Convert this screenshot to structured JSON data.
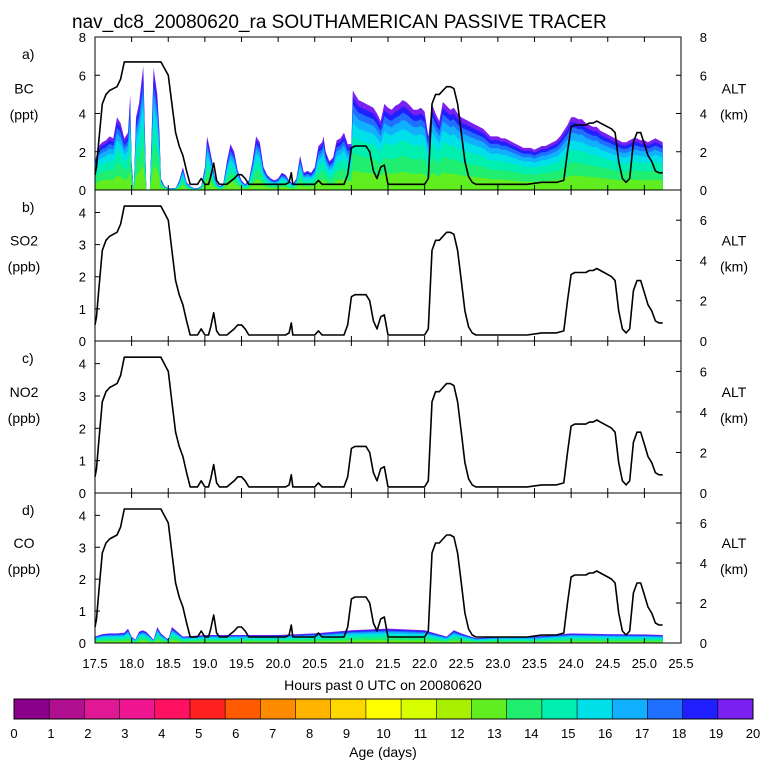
{
  "chart_data": {
    "type": "line",
    "title": "nav_dc8_20080620_ra SOUTHAMERICAN PASSIVE TRACER",
    "xlabel": "Hours past 0 UTC on 20080620",
    "xlim": [
      17.5,
      25.5
    ],
    "xticks": [
      "17.5",
      "18.0",
      "18.5",
      "19.0",
      "19.5",
      "20.0",
      "20.5",
      "21.0",
      "21.5",
      "22.0",
      "22.5",
      "23.0",
      "23.5",
      "24.0",
      "24.5",
      "25.0",
      "25.5"
    ],
    "altitude_km": {
      "x": [
        17.5,
        17.52,
        17.55,
        17.6,
        17.65,
        17.7,
        17.75,
        17.8,
        17.85,
        17.9,
        18.0,
        18.1,
        18.2,
        18.3,
        18.4,
        18.5,
        18.55,
        18.6,
        18.65,
        18.7,
        18.75,
        18.8,
        18.85,
        18.9,
        18.95,
        19.0,
        19.05,
        19.08,
        19.12,
        19.16,
        19.2,
        19.25,
        19.3,
        19.4,
        19.45,
        19.5,
        19.55,
        19.6,
        19.7,
        19.8,
        19.9,
        20.0,
        20.1,
        20.15,
        20.18,
        20.2,
        20.22,
        20.25,
        20.3,
        20.4,
        20.45,
        20.5,
        20.55,
        20.6,
        20.7,
        20.8,
        20.9,
        20.95,
        21.0,
        21.05,
        21.1,
        21.2,
        21.25,
        21.3,
        21.35,
        21.4,
        21.45,
        21.5,
        21.55,
        21.6,
        21.7,
        21.8,
        21.9,
        22.0,
        22.05,
        22.1,
        22.15,
        22.2,
        22.25,
        22.3,
        22.35,
        22.4,
        22.45,
        22.5,
        22.55,
        22.6,
        22.65,
        22.7,
        22.8,
        22.9,
        23.0,
        23.2,
        23.4,
        23.6,
        23.8,
        23.9,
        23.95,
        24.0,
        24.05,
        24.1,
        24.2,
        24.25,
        24.3,
        24.35,
        24.4,
        24.45,
        24.5,
        24.55,
        24.6,
        24.65,
        24.7,
        24.75,
        24.8,
        24.85,
        24.9,
        24.95,
        25.0,
        25.05,
        25.1,
        25.15,
        25.2,
        25.25
      ],
      "y": [
        0.8,
        1.2,
        2.5,
        4.5,
        5.0,
        5.2,
        5.3,
        5.4,
        5.8,
        6.7,
        6.7,
        6.7,
        6.7,
        6.7,
        6.7,
        6.0,
        4.5,
        3.0,
        2.3,
        1.8,
        1.0,
        0.3,
        0.3,
        0.3,
        0.6,
        0.3,
        0.3,
        0.7,
        1.4,
        0.5,
        0.3,
        0.3,
        0.3,
        0.6,
        0.8,
        0.8,
        0.6,
        0.3,
        0.3,
        0.3,
        0.3,
        0.3,
        0.3,
        0.4,
        0.9,
        0.3,
        0.3,
        0.3,
        0.3,
        0.3,
        0.3,
        0.3,
        0.5,
        0.3,
        0.3,
        0.3,
        0.3,
        0.8,
        2.2,
        2.3,
        2.3,
        2.3,
        2.0,
        1.0,
        0.6,
        1.2,
        1.3,
        0.3,
        0.3,
        0.3,
        0.3,
        0.3,
        0.3,
        0.3,
        0.6,
        4.5,
        5.0,
        5.0,
        5.2,
        5.4,
        5.4,
        5.3,
        4.5,
        3.0,
        1.5,
        0.7,
        0.4,
        0.3,
        0.3,
        0.3,
        0.3,
        0.3,
        0.3,
        0.4,
        0.4,
        0.5,
        2.0,
        3.3,
        3.4,
        3.4,
        3.4,
        3.5,
        3.5,
        3.6,
        3.5,
        3.4,
        3.3,
        3.2,
        3.0,
        1.5,
        0.6,
        0.4,
        0.6,
        2.5,
        3.0,
        3.0,
        2.4,
        1.8,
        1.5,
        1.0,
        0.9,
        0.9
      ]
    },
    "age_colorbar": {
      "label": "Age (days)",
      "ticks": [
        "0",
        "1",
        "2",
        "3",
        "4",
        "5",
        "6",
        "7",
        "8",
        "9",
        "10",
        "11",
        "12",
        "13",
        "14",
        "15",
        "16",
        "17",
        "18",
        "19",
        "20"
      ],
      "colors": [
        "#8b008b",
        "#b0108f",
        "#e01894",
        "#f01590",
        "#ff1060",
        "#ff2020",
        "#ff5a00",
        "#ff8c00",
        "#ffb400",
        "#ffd700",
        "#ffff00",
        "#d8ff00",
        "#a8f000",
        "#60ee20",
        "#20ee70",
        "#00eeb0",
        "#00e0e8",
        "#10b0ff",
        "#2070ff",
        "#2020ff",
        "#7a20f0"
      ]
    },
    "panels": [
      {
        "letter": "a)",
        "ylabel": "BC",
        "yunit": "(ppt)",
        "ylim": [
          0,
          8
        ],
        "yticks": [
          "0",
          "2",
          "4",
          "6",
          "8"
        ],
        "right_label": "ALT",
        "right_unit": "(km)",
        "right_ylim": [
          0,
          8
        ],
        "right_yticks": [
          "0",
          "2",
          "4",
          "6",
          "8"
        ],
        "tracer_total": {
          "x": [
            17.5,
            17.55,
            17.6,
            17.65,
            17.7,
            17.75,
            17.8,
            17.85,
            17.9,
            17.95,
            17.98,
            18.0,
            18.03,
            18.06,
            18.1,
            18.13,
            18.16,
            18.2,
            18.25,
            18.3,
            18.35,
            18.38,
            18.4,
            18.45,
            18.5,
            18.55,
            18.6,
            18.65,
            18.7,
            18.75,
            18.8,
            18.85,
            18.9,
            18.95,
            19.0,
            19.03,
            19.06,
            19.1,
            19.13,
            19.16,
            19.2,
            19.25,
            19.3,
            19.35,
            19.4,
            19.45,
            19.5,
            19.55,
            19.6,
            19.65,
            19.7,
            19.75,
            19.8,
            19.85,
            19.9,
            19.95,
            20.0,
            20.05,
            20.1,
            20.15,
            20.2,
            20.25,
            20.3,
            20.35,
            20.4,
            20.45,
            20.5,
            20.55,
            20.6,
            20.62,
            20.65,
            20.7,
            20.75,
            20.8,
            20.85,
            20.9,
            20.95,
            21.0,
            21.02,
            21.05,
            21.1,
            21.15,
            21.2,
            21.25,
            21.3,
            21.35,
            21.4,
            21.45,
            21.5,
            21.55,
            21.6,
            21.65,
            21.7,
            21.75,
            21.8,
            21.85,
            21.9,
            21.95,
            22.0,
            22.05,
            22.1,
            22.15,
            22.2,
            22.25,
            22.3,
            22.35,
            22.4,
            22.45,
            22.5,
            22.55,
            22.6,
            22.65,
            22.7,
            22.75,
            22.8,
            22.85,
            22.9,
            22.95,
            23.0,
            23.05,
            23.1,
            23.15,
            23.2,
            23.25,
            23.3,
            23.35,
            23.4,
            23.45,
            23.5,
            23.55,
            23.6,
            23.65,
            23.7,
            23.75,
            23.8,
            23.85,
            23.9,
            23.95,
            24.0,
            24.05,
            24.1,
            24.15,
            24.2,
            24.25,
            24.3,
            24.35,
            24.4,
            24.45,
            24.5,
            24.55,
            24.6,
            24.65,
            24.7,
            24.75,
            24.8,
            24.85,
            24.9,
            24.95,
            25.0,
            25.05,
            25.1,
            25.15,
            25.2,
            25.25
          ],
          "y": [
            1.5,
            2.3,
            2.5,
            2.6,
            2.8,
            2.7,
            3.8,
            3.5,
            2.7,
            3.0,
            5.0,
            1.5,
            0.0,
            3.8,
            4.5,
            5.5,
            6.5,
            0.0,
            0.0,
            6.4,
            5.0,
            3.0,
            0.6,
            0.2,
            0.1,
            0.1,
            0.1,
            0.5,
            1.2,
            0.4,
            0.2,
            0.1,
            0.1,
            0.2,
            1.2,
            2.8,
            2.3,
            1.5,
            0.8,
            0.4,
            0.2,
            0.3,
            1.5,
            2.4,
            2.0,
            1.0,
            0.5,
            0.3,
            0.5,
            1.5,
            2.8,
            2.5,
            1.2,
            0.8,
            0.6,
            0.5,
            0.6,
            0.9,
            0.8,
            0.5,
            0.3,
            0.6,
            1.8,
            0.9,
            1.0,
            0.9,
            1.2,
            2.3,
            2.5,
            2.8,
            2.0,
            1.5,
            1.7,
            2.6,
            2.7,
            3.0,
            2.4,
            2.4,
            5.2,
            5.0,
            4.7,
            4.6,
            4.5,
            4.4,
            4.3,
            4.0,
            3.6,
            4.5,
            4.3,
            4.2,
            4.4,
            4.5,
            4.7,
            4.6,
            4.4,
            4.2,
            4.2,
            4.3,
            4.1,
            2.8,
            4.5,
            4.0,
            3.6,
            4.6,
            4.4,
            4.2,
            4.3,
            4.0,
            3.8,
            3.7,
            3.6,
            3.5,
            3.4,
            3.3,
            3.2,
            3.0,
            2.8,
            2.8,
            2.8,
            2.7,
            2.7,
            2.6,
            2.5,
            2.4,
            2.3,
            2.2,
            2.2,
            2.2,
            2.1,
            2.2,
            2.3,
            2.3,
            2.4,
            2.5,
            2.6,
            2.8,
            3.1,
            3.4,
            3.8,
            3.8,
            3.7,
            3.7,
            3.5,
            3.4,
            3.3,
            3.3,
            3.1,
            3.0,
            2.9,
            2.8,
            2.7,
            2.6,
            2.5,
            2.5,
            2.6,
            2.7,
            2.7,
            2.6,
            2.6,
            2.5,
            2.6,
            2.7,
            2.6,
            2.5
          ]
        }
      },
      {
        "letter": "b)",
        "ylabel": "SO2",
        "yunit": "(ppb)",
        "ylim": [
          0,
          4.7
        ],
        "yticks": [
          "0",
          "1",
          "2",
          "3",
          "4"
        ],
        "right_label": "ALT",
        "right_unit": "(km)",
        "right_ylim": [
          0,
          7.5
        ],
        "right_yticks": [
          "0",
          "2",
          "4",
          "6"
        ]
      },
      {
        "letter": "c)",
        "ylabel": "NO2",
        "yunit": "(ppb)",
        "ylim": [
          0,
          4.7
        ],
        "yticks": [
          "0",
          "1",
          "2",
          "3",
          "4"
        ],
        "right_label": "ALT",
        "right_unit": "(km)",
        "right_ylim": [
          0,
          7.5
        ],
        "right_yticks": [
          "0",
          "2",
          "4",
          "6"
        ]
      },
      {
        "letter": "d)",
        "ylabel": "CO",
        "yunit": "(ppb)",
        "ylim": [
          0,
          4.7
        ],
        "yticks": [
          "0",
          "1",
          "2",
          "3",
          "4"
        ],
        "right_label": "ALT",
        "right_unit": "(km)",
        "right_ylim": [
          0,
          7.5
        ],
        "right_yticks": [
          "0",
          "2",
          "4",
          "6"
        ],
        "tracer_total": {
          "x": [
            17.5,
            17.6,
            17.7,
            17.8,
            17.9,
            17.95,
            18.0,
            18.05,
            18.1,
            18.15,
            18.2,
            18.3,
            18.35,
            18.4,
            18.5,
            18.55,
            18.6,
            18.7,
            19.0,
            19.5,
            20.0,
            20.5,
            21.0,
            21.5,
            22.0,
            22.3,
            22.4,
            22.5,
            22.7,
            23.0,
            23.5,
            24.0,
            24.5,
            25.0,
            25.25
          ],
          "y": [
            0.2,
            0.28,
            0.3,
            0.3,
            0.32,
            0.45,
            0.2,
            0.1,
            0.35,
            0.4,
            0.35,
            0.1,
            0.5,
            0.3,
            0.1,
            0.5,
            0.4,
            0.2,
            0.25,
            0.25,
            0.25,
            0.3,
            0.4,
            0.45,
            0.4,
            0.2,
            0.4,
            0.3,
            0.15,
            0.2,
            0.2,
            0.3,
            0.28,
            0.27,
            0.25
          ]
        }
      }
    ]
  }
}
